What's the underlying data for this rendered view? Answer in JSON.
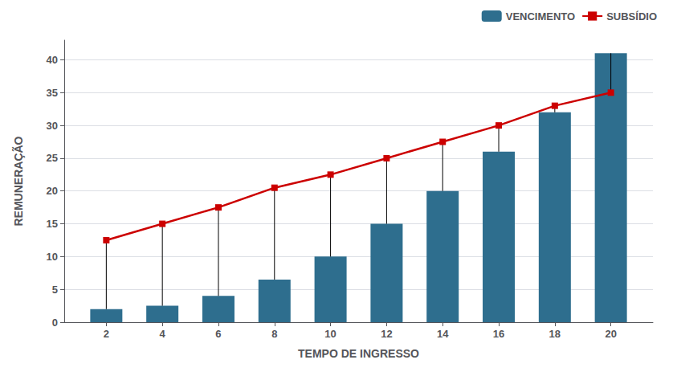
{
  "chart_data": {
    "type": "bar",
    "xlabel": "TEMPO DE INGRESSO",
    "ylabel": "REMUNERAÇÃO",
    "x": [
      2,
      4,
      6,
      8,
      10,
      12,
      14,
      16,
      18,
      20
    ],
    "series": [
      {
        "name": "VENCIMENTO",
        "type": "bar",
        "color": "#2E6E8E",
        "values": [
          2,
          2.5,
          4,
          6.5,
          10,
          15,
          20,
          26,
          32,
          41
        ]
      },
      {
        "name": "SUBSÍDIO",
        "type": "line",
        "color": "#CC0000",
        "marker": "square",
        "values": [
          12.5,
          15,
          17.5,
          20.5,
          22.5,
          25,
          27.5,
          30,
          33,
          35
        ]
      }
    ],
    "xlim": [
      0.5,
      21.5
    ],
    "xticks": [
      2,
      4,
      6,
      8,
      10,
      12,
      14,
      16,
      18,
      20
    ],
    "ylim": [
      0,
      43
    ],
    "yticks": [
      0,
      5,
      10,
      15,
      20,
      25,
      30,
      35,
      40
    ],
    "grid": true,
    "legend": "upper right"
  }
}
